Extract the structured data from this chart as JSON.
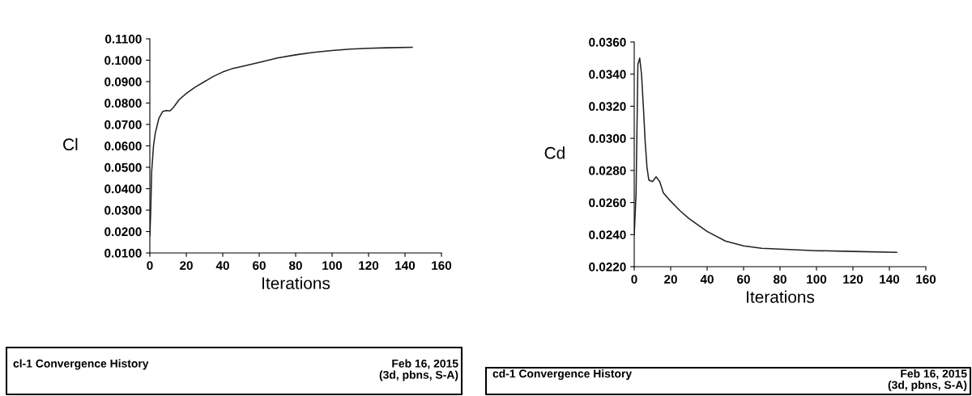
{
  "chart_data": [
    {
      "type": "line",
      "xlabel": "Iterations",
      "ylabel": "Cl",
      "xlim": [
        0,
        160
      ],
      "xticks": [
        0,
        20,
        40,
        60,
        80,
        100,
        120,
        140,
        160
      ],
      "ylim": [
        0.01,
        0.11
      ],
      "yticks": [
        {
          "value": 0.01,
          "label": "0.0100"
        },
        {
          "value": 0.02,
          "label": "0.0200"
        },
        {
          "value": 0.03,
          "label": "0.0300"
        },
        {
          "value": 0.04,
          "label": "0.0400"
        },
        {
          "value": 0.05,
          "label": "0.0500"
        },
        {
          "value": 0.06,
          "label": "0.0600"
        },
        {
          "value": 0.07,
          "label": "0.0700"
        },
        {
          "value": 0.08,
          "label": "0.0800"
        },
        {
          "value": 0.09,
          "label": "0.0900"
        },
        {
          "value": 0.1,
          "label": "0.1000"
        },
        {
          "value": 0.11,
          "label": "0.1100"
        }
      ],
      "grid": false,
      "annotations": [
        "cl-1 Convergence History",
        "Feb 16, 2015",
        "(3d, pbns, S-A)"
      ],
      "series": [
        {
          "color": "#222222",
          "x": [
            0,
            0.5,
            1,
            2,
            3,
            5,
            7,
            9,
            11,
            13,
            16,
            20,
            25,
            30,
            35,
            40,
            45,
            50,
            60,
            70,
            80,
            90,
            100,
            110,
            120,
            130,
            144
          ],
          "values": [
            0.018,
            0.03,
            0.048,
            0.06,
            0.066,
            0.073,
            0.076,
            0.0765,
            0.0763,
            0.078,
            0.0815,
            0.0845,
            0.0875,
            0.09,
            0.0925,
            0.0945,
            0.096,
            0.097,
            0.099,
            0.101,
            0.1025,
            0.1037,
            0.1045,
            0.1052,
            0.1056,
            0.1058,
            0.106
          ]
        }
      ]
    },
    {
      "type": "line",
      "xlabel": "Iterations",
      "ylabel": "Cd",
      "xlim": [
        0,
        160
      ],
      "xticks": [
        0,
        20,
        40,
        60,
        80,
        100,
        120,
        140,
        160
      ],
      "ylim": [
        0.022,
        0.036
      ],
      "yticks": [
        {
          "value": 0.022,
          "label": "0.0220"
        },
        {
          "value": 0.024,
          "label": "0.0240"
        },
        {
          "value": 0.026,
          "label": "0.0260"
        },
        {
          "value": 0.028,
          "label": "0.0280"
        },
        {
          "value": 0.03,
          "label": "0.0300"
        },
        {
          "value": 0.032,
          "label": "0.0320"
        },
        {
          "value": 0.034,
          "label": "0.0340"
        },
        {
          "value": 0.036,
          "label": "0.0360"
        }
      ],
      "grid": false,
      "annotations": [
        "cd-1 Convergence History",
        "Feb 16, 2015",
        "(3d, pbns, S-A)"
      ],
      "series": [
        {
          "color": "#222222",
          "x": [
            0,
            1,
            2,
            3,
            4,
            5,
            6,
            7,
            8,
            10,
            12,
            14,
            16,
            19,
            25,
            30,
            40,
            50,
            60,
            70,
            80,
            100,
            120,
            144
          ],
          "values": [
            0.024,
            0.0265,
            0.0346,
            0.035,
            0.034,
            0.032,
            0.0298,
            0.0282,
            0.0274,
            0.0273,
            0.0276,
            0.0273,
            0.0266,
            0.0262,
            0.0255,
            0.025,
            0.0242,
            0.0236,
            0.0233,
            0.02315,
            0.0231,
            0.023,
            0.02295,
            0.0229
          ]
        }
      ]
    }
  ]
}
